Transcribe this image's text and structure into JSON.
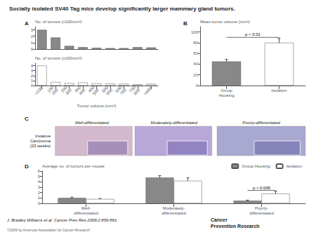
{
  "title": "Socially isolated SV40 Tag mice develop significantly larger mammary gland tumors.",
  "annotations": [
    "J. Bradley Williams et al. Cancer Prev Res 2009;2:850-861",
    "©2009 by American Association for Cancer Research",
    "Cancer\nPrevention Research"
  ],
  "chart_data": [
    {
      "type": "bar",
      "title": "A",
      "categories": [
        "<100",
        "100-\n200",
        "200-\n300",
        "300-\n400",
        "400-\n500",
        "500-\n600",
        "600-\n700",
        "700-\n800",
        ">800"
      ],
      "values": [
        3.0,
        1.8,
        0.5,
        0.3,
        0.2,
        0.15,
        0.15,
        0.3,
        0.25
      ],
      "color": "#888888",
      "ylabel": "No. of tumors (x100mm³)",
      "ylim": [
        0,
        3.5
      ],
      "yticks": [
        0,
        1,
        2,
        3
      ],
      "tick_labels": "y",
      "grid": false
    },
    {
      "type": "bar",
      "categories": [
        "<100",
        "100-\n200",
        "200-\n300",
        "300-\n400",
        "400-\n500",
        "500-\n600",
        "600-\n700",
        "700-\n800",
        ">800"
      ],
      "values": [
        4.0,
        0.7,
        0.5,
        0.6,
        0.45,
        0.4,
        0.35,
        0.25,
        0.35
      ],
      "color": "#ffffff",
      "xlabel": "Tumor volume (mm³)",
      "ylabel": "No. of tumors (x100mm³)",
      "ylim": [
        0,
        4.5
      ],
      "yticks": [
        0,
        1,
        2,
        3,
        4
      ],
      "grid": false
    },
    {
      "type": "bar",
      "title": "B",
      "categories": [
        "Group\nHousing",
        "Isolation"
      ],
      "values": [
        45,
        80
      ],
      "colors": [
        "#888888",
        "#ffffff"
      ],
      "errors": [
        4,
        8
      ],
      "ylabel": "Mean tumor volume (mm³)",
      "ylim": [
        0,
        110
      ],
      "yticks": [
        0,
        20,
        40,
        60,
        80,
        100
      ],
      "annotations": [
        {
          "text": "p < 0.01",
          "y": 90,
          "x": [
            "Group\nHousing",
            "Isolation"
          ]
        }
      ],
      "grid": false
    },
    {
      "type": "image",
      "title": "C",
      "categories": [
        "Well-differentiated",
        "Moderately-differentiated",
        "Poorly-differentiated"
      ],
      "ylabel": "Invasive\nCarcinoma\n(23 weeks)",
      "colors": [
        "#d4b8cc",
        "#b8a8d8",
        "#a8a8d0"
      ]
    },
    {
      "type": "bar",
      "title": "D",
      "categories": [
        "Well-\ndifferentiated",
        "Moderately-\ndifferentiated",
        "Poorly-\ndifferentiated"
      ],
      "series": [
        {
          "name": "Group Housing",
          "color": "#888888",
          "values": [
            1.0,
            4.8,
            0.5
          ],
          "errors": [
            0.15,
            0.35,
            0.1
          ]
        },
        {
          "name": "Isolation",
          "color": "#ffffff",
          "values": [
            0.8,
            4.2,
            1.8
          ],
          "errors": [
            0.12,
            0.55,
            0.45
          ]
        }
      ],
      "ylabel": "Average no. of tumors per mouse",
      "ylim": [
        0,
        6
      ],
      "yticks": [
        0,
        1,
        2,
        3,
        4,
        5,
        6
      ],
      "legend": "upper right",
      "annotations": [
        {
          "text": "p < 0.005",
          "y": 2.4,
          "x": "Poorly-\ndifferentiated"
        }
      ],
      "grid": false
    }
  ]
}
